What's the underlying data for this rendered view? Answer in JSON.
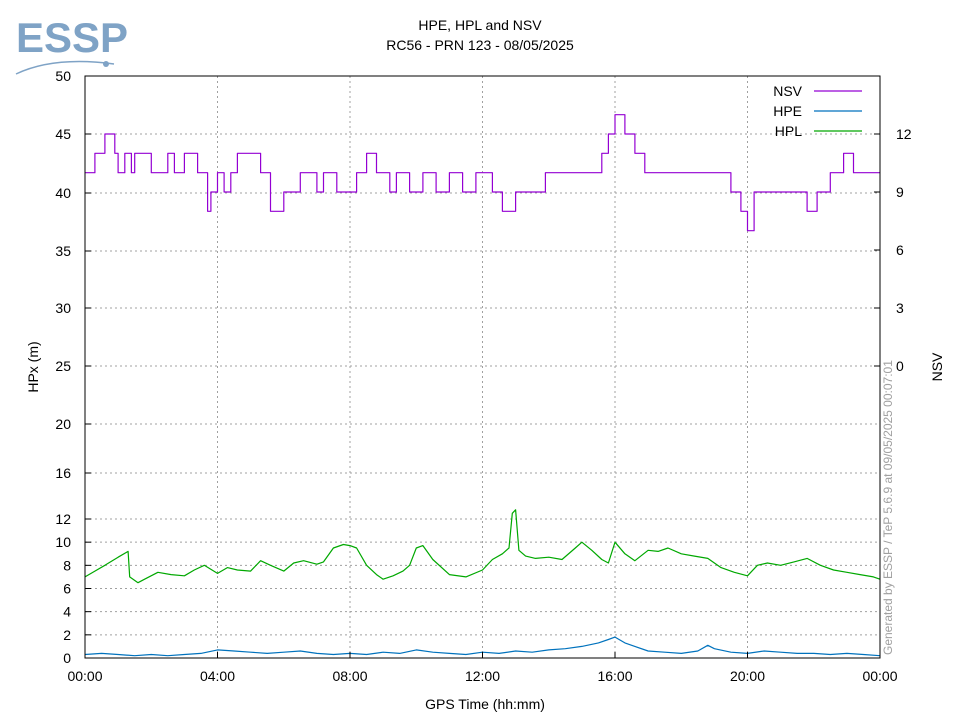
{
  "brand": {
    "logo_text": "ESSP",
    "logo_color": "#7fa3c6"
  },
  "chart_data": {
    "type": "line",
    "title": "HPE, HPL and NSV",
    "subtitle": "RC56 - PRN 123 - 08/05/2025",
    "xlabel": "GPS Time (hh:mm)",
    "ylabel": "HPx (m)",
    "y2label": "NSV",
    "xlim_hours": [
      0,
      24
    ],
    "x_ticks": [
      "00:00",
      "04:00",
      "08:00",
      "12:00",
      "16:00",
      "20:00",
      "00:00"
    ],
    "y_ticks": [
      "0",
      "2",
      "4",
      "6",
      "8",
      "10",
      "12",
      "16",
      "20",
      "25",
      "30",
      "35",
      "40",
      "45",
      "50"
    ],
    "y2_ticks": [
      "0",
      "3",
      "6",
      "9",
      "12"
    ],
    "grid": true,
    "legend_position": "top-right",
    "footer_note": "Generated by ESSP / TeP 5.6.9 at 09/05/2025 00:07:01",
    "series": [
      {
        "name": "NSV",
        "axis": "right",
        "color": "#9400d3",
        "step": true,
        "x": [
          0,
          0.3,
          0.6,
          0.9,
          1.0,
          1.2,
          1.4,
          1.5,
          2.0,
          2.5,
          2.7,
          3.0,
          3.4,
          3.7,
          3.8,
          4.0,
          4.2,
          4.4,
          4.6,
          5.3,
          5.6,
          6.0,
          6.2,
          6.5,
          7.0,
          7.2,
          7.6,
          8.0,
          8.2,
          8.5,
          8.8,
          9.2,
          9.4,
          9.8,
          10.2,
          10.6,
          11.0,
          11.4,
          11.8,
          12.3,
          12.6,
          13.0,
          13.5,
          13.9,
          14.3,
          14.8,
          15.2,
          15.6,
          15.8,
          16.0,
          16.3,
          16.6,
          16.9,
          17.2,
          17.5,
          17.9,
          18.3,
          18.7,
          19.1,
          19.5,
          19.8,
          20.0,
          20.2,
          20.6,
          21.1,
          21.5,
          21.8,
          22.1,
          22.5,
          22.9,
          23.2,
          23.6,
          24.0
        ],
        "values": [
          10,
          11,
          12,
          11,
          10,
          11,
          10,
          11,
          10,
          11,
          10,
          11,
          10,
          8,
          9,
          10,
          9,
          10,
          11,
          10,
          8,
          9,
          9,
          10,
          9,
          10,
          9,
          9,
          10,
          11,
          10,
          9,
          10,
          9,
          10,
          9,
          10,
          9,
          10,
          9,
          8,
          9,
          9,
          10,
          10,
          10,
          10,
          11,
          12,
          13,
          12,
          11,
          10,
          10,
          10,
          10,
          10,
          10,
          10,
          9,
          8,
          7,
          9,
          9,
          9,
          9,
          8,
          9,
          10,
          11,
          10,
          10,
          10
        ]
      },
      {
        "name": "HPE",
        "axis": "left",
        "color": "#0072bd",
        "x": [
          0,
          0.5,
          1.0,
          1.5,
          2.0,
          2.5,
          3.0,
          3.5,
          4.0,
          4.5,
          5.0,
          5.5,
          6.0,
          6.5,
          7.0,
          7.5,
          8.0,
          8.5,
          9.0,
          9.5,
          10.0,
          10.5,
          11.0,
          11.5,
          12.0,
          12.5,
          13.0,
          13.5,
          14.0,
          14.5,
          15.0,
          15.5,
          15.8,
          16.0,
          16.3,
          16.6,
          17.0,
          17.5,
          18.0,
          18.5,
          18.8,
          19.0,
          19.5,
          20.0,
          20.5,
          21.0,
          21.5,
          22.0,
          22.5,
          23.0,
          23.5,
          24.0
        ],
        "values": [
          0.3,
          0.4,
          0.3,
          0.2,
          0.3,
          0.2,
          0.3,
          0.4,
          0.7,
          0.6,
          0.5,
          0.4,
          0.5,
          0.6,
          0.4,
          0.3,
          0.4,
          0.3,
          0.5,
          0.4,
          0.7,
          0.5,
          0.4,
          0.3,
          0.5,
          0.4,
          0.6,
          0.5,
          0.7,
          0.8,
          1.0,
          1.3,
          1.6,
          1.8,
          1.3,
          1.0,
          0.6,
          0.5,
          0.4,
          0.6,
          1.1,
          0.8,
          0.5,
          0.4,
          0.6,
          0.5,
          0.4,
          0.4,
          0.3,
          0.4,
          0.3,
          0.2
        ]
      },
      {
        "name": "HPL",
        "axis": "left",
        "color": "#00a800",
        "x": [
          0,
          0.3,
          0.6,
          1.0,
          1.3,
          1.35,
          1.6,
          1.8,
          2.2,
          2.6,
          3.0,
          3.3,
          3.6,
          4.0,
          4.3,
          4.6,
          5.0,
          5.3,
          5.6,
          6.0,
          6.3,
          6.6,
          7.0,
          7.2,
          7.5,
          7.8,
          8.0,
          8.2,
          8.5,
          8.8,
          9.0,
          9.3,
          9.6,
          9.8,
          10.0,
          10.2,
          10.5,
          11.0,
          11.5,
          12.0,
          12.3,
          12.6,
          12.8,
          12.9,
          13.0,
          13.1,
          13.3,
          13.6,
          14.0,
          14.4,
          14.8,
          15.0,
          15.3,
          15.6,
          15.8,
          16.0,
          16.3,
          16.6,
          17.0,
          17.3,
          17.6,
          18.0,
          18.4,
          18.8,
          19.2,
          19.6,
          20.0,
          20.3,
          20.6,
          21.0,
          21.4,
          21.8,
          22.2,
          22.6,
          23.0,
          23.4,
          23.8,
          24.0
        ],
        "values": [
          7.0,
          7.5,
          8.0,
          8.7,
          9.2,
          7.0,
          6.5,
          6.8,
          7.4,
          7.2,
          7.1,
          7.6,
          8.0,
          7.3,
          7.8,
          7.6,
          7.5,
          8.4,
          8.0,
          7.5,
          8.2,
          8.4,
          8.1,
          8.3,
          9.5,
          9.8,
          9.7,
          9.5,
          8.0,
          7.2,
          6.8,
          7.1,
          7.5,
          8.0,
          9.5,
          9.7,
          8.5,
          7.2,
          7.0,
          7.6,
          8.5,
          9.0,
          9.5,
          12.5,
          12.8,
          9.3,
          8.8,
          8.6,
          8.7,
          8.5,
          9.5,
          10.0,
          9.3,
          8.5,
          8.2,
          10.0,
          9.0,
          8.4,
          9.3,
          9.2,
          9.5,
          9.0,
          8.8,
          8.6,
          7.8,
          7.4,
          7.1,
          8.0,
          8.2,
          8.0,
          8.3,
          8.6,
          8.0,
          7.6,
          7.4,
          7.2,
          7.0,
          6.8
        ]
      }
    ]
  }
}
